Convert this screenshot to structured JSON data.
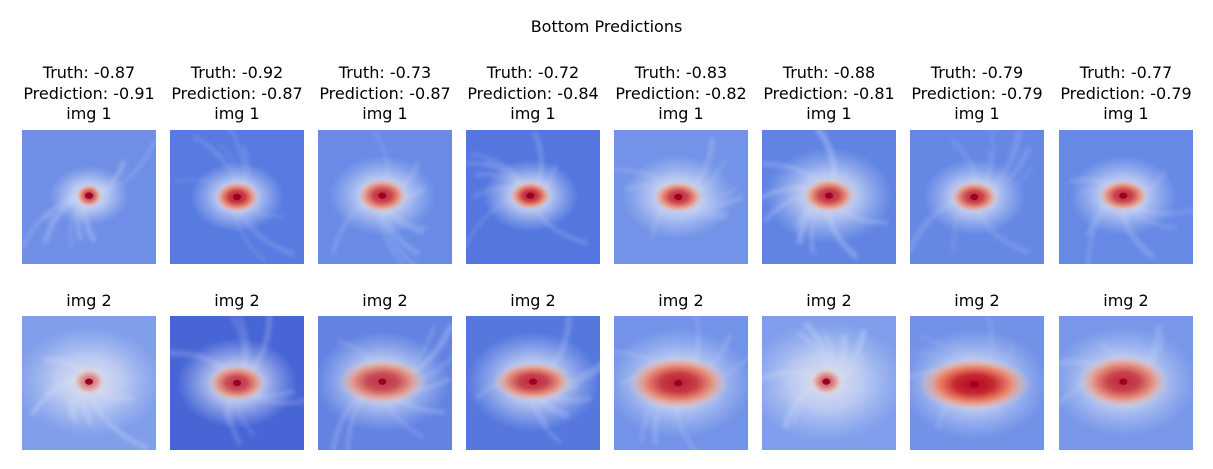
{
  "figure": {
    "title": "Bottom Predictions"
  },
  "panels": [
    {
      "truth": "Truth: -0.87",
      "prediction": "Prediction: -0.91",
      "img1_label": "img 1",
      "img2_label": "img 2"
    },
    {
      "truth": "Truth: -0.92",
      "prediction": "Prediction: -0.87",
      "img1_label": "img 1",
      "img2_label": "img 2"
    },
    {
      "truth": "Truth: -0.73",
      "prediction": "Prediction: -0.87",
      "img1_label": "img 1",
      "img2_label": "img 2"
    },
    {
      "truth": "Truth: -0.72",
      "prediction": "Prediction: -0.84",
      "img1_label": "img 1",
      "img2_label": "img 2"
    },
    {
      "truth": "Truth: -0.83",
      "prediction": "Prediction: -0.82",
      "img1_label": "img 1",
      "img2_label": "img 2"
    },
    {
      "truth": "Truth: -0.88",
      "prediction": "Prediction: -0.81",
      "img1_label": "img 1",
      "img2_label": "img 2"
    },
    {
      "truth": "Truth: -0.79",
      "prediction": "Prediction: -0.79",
      "img1_label": "img 1",
      "img2_label": "img 2"
    },
    {
      "truth": "Truth: -0.77",
      "prediction": "Prediction: -0.79",
      "img1_label": "img 1",
      "img2_label": "img 2"
    }
  ],
  "colormap": {
    "name": "coolwarm",
    "low": "#3b4cc0",
    "mid": "#dddddd",
    "high": "#b40426"
  }
}
